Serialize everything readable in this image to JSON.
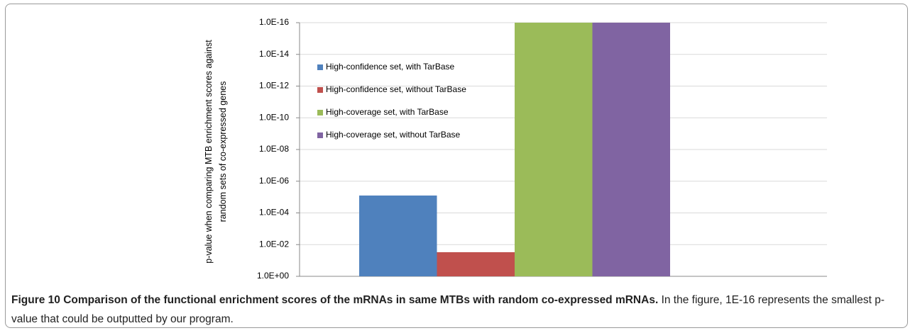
{
  "chart_data": {
    "type": "bar",
    "log_scale": true,
    "ylabel": "p-value when comparing MTB enrichment scores against random sets of co-expressed genes",
    "categories": [
      null
    ],
    "series": [
      {
        "name": "High-confidence set, with TarBase",
        "color": "#4f81bd",
        "values": [
          8e-06
        ]
      },
      {
        "name": "High-confidence set, without TarBase",
        "color": "#c0504d",
        "values": [
          0.03
        ]
      },
      {
        "name": "High-coverage set, with TarBase",
        "color": "#9bbb59",
        "values": [
          1e-16
        ]
      },
      {
        "name": "High-coverage set, without TarBase",
        "color": "#8064a2",
        "values": [
          1e-16
        ]
      }
    ],
    "ylim": [
      1,
      1e-16
    ],
    "yticks": [
      {
        "value": 1,
        "label": "1.0E+00"
      },
      {
        "value": 0.01,
        "label": "1.0E-02"
      },
      {
        "value": 0.0001,
        "label": "1.0E-04"
      },
      {
        "value": 1e-06,
        "label": "1.0E-06"
      },
      {
        "value": 1e-08,
        "label": "1.0E-08"
      },
      {
        "value": 1e-10,
        "label": "1.0E-10"
      },
      {
        "value": 1e-12,
        "label": "1.0E-12"
      },
      {
        "value": 1e-14,
        "label": "1.0E-14"
      },
      {
        "value": 1e-16,
        "label": "1.0E-16"
      }
    ],
    "grid": true,
    "legend": "upper left"
  },
  "caption": {
    "label": "Figure 10",
    "title": "Comparison of the functional enrichment scores of the mRNAs in same MTBs with random co-expressed mRNAs.",
    "text": "In the figure, 1E-16 represents the smallest p-value that could be outputted by our program."
  }
}
